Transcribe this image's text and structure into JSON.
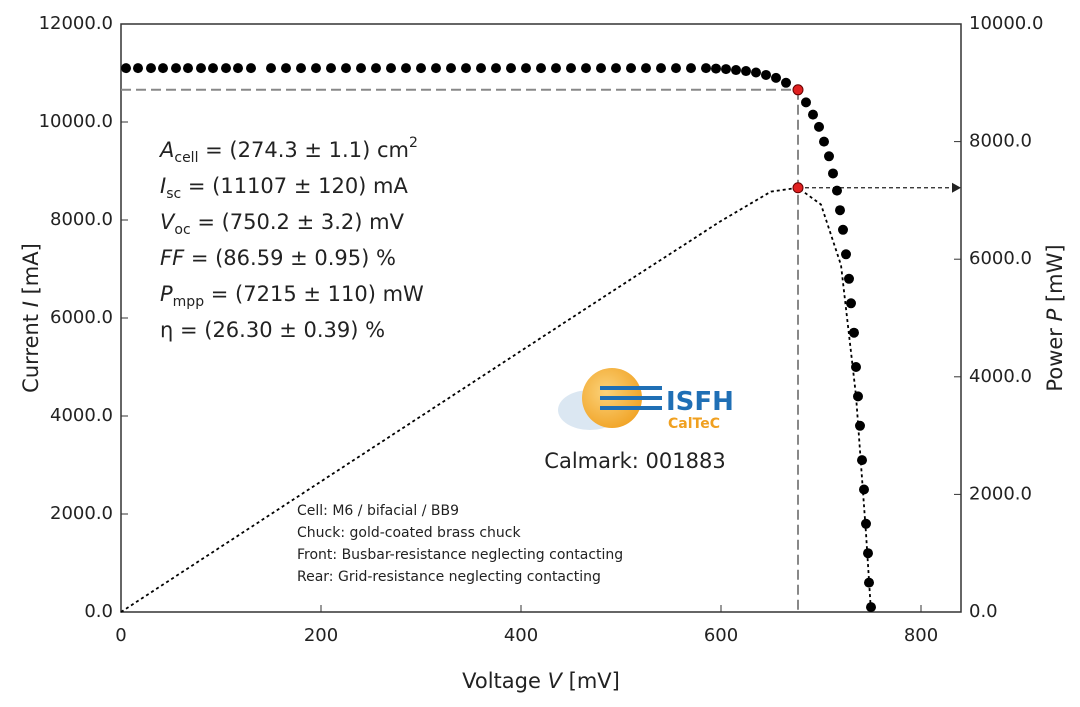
{
  "chart_data": {
    "type": "scatter",
    "xlabel": [
      "Voltage ",
      "V",
      " [mV]"
    ],
    "ylabel": [
      "Current ",
      "I",
      " [mA]"
    ],
    "y2label": [
      "Power ",
      "P",
      " [mW]"
    ],
    "xlim": [
      0,
      840
    ],
    "xticks": [
      0,
      200,
      400,
      600,
      800
    ],
    "ylim": [
      0,
      12000
    ],
    "yticks": [
      {
        "value": 0,
        "label": "0.0"
      },
      {
        "value": 2000,
        "label": "2000.0"
      },
      {
        "value": 4000,
        "label": "4000.0"
      },
      {
        "value": 6000,
        "label": "6000.0"
      },
      {
        "value": 8000,
        "label": "8000.0"
      },
      {
        "value": 10000,
        "label": "10000.0"
      },
      {
        "value": 12000,
        "label": "12000.0"
      }
    ],
    "y2lim": [
      0,
      10000
    ],
    "y2ticks": [
      {
        "value": 0,
        "label": "0.0"
      },
      {
        "value": 2000,
        "label": "2000.0"
      },
      {
        "value": 4000,
        "label": "4000.0"
      },
      {
        "value": 6000,
        "label": "6000.0"
      },
      {
        "value": 8000,
        "label": "8000.0"
      },
      {
        "value": 10000,
        "label": "10000.0"
      }
    ],
    "grid": false,
    "series": [
      {
        "color": "#000000",
        "marker": "circle",
        "x": [
          5,
          17,
          30,
          42,
          55,
          67,
          80,
          92,
          105,
          117,
          130,
          150,
          165,
          180,
          195,
          210,
          225,
          240,
          255,
          270,
          285,
          300,
          315,
          330,
          345,
          360,
          375,
          390,
          405,
          420,
          435,
          450,
          465,
          480,
          495,
          510,
          525,
          540,
          555,
          570,
          585,
          595,
          605,
          615,
          625,
          635,
          645,
          655,
          665,
          677,
          685,
          692,
          698,
          703,
          708,
          712,
          716,
          719,
          722,
          725,
          728,
          730,
          733,
          735,
          737,
          739,
          741,
          743,
          745,
          747,
          748,
          750
        ],
        "values": [
          11100,
          11100,
          11100,
          11100,
          11100,
          11100,
          11100,
          11100,
          11100,
          11100,
          11100,
          11100,
          11100,
          11100,
          11100,
          11100,
          11100,
          11100,
          11100,
          11100,
          11100,
          11100,
          11100,
          11100,
          11100,
          11100,
          11100,
          11100,
          11100,
          11100,
          11100,
          11100,
          11100,
          11100,
          11100,
          11100,
          11100,
          11100,
          11100,
          11100,
          11100,
          11090,
          11080,
          11060,
          11040,
          11010,
          10960,
          10900,
          10800,
          10657,
          10400,
          10150,
          9900,
          9600,
          9300,
          8950,
          8600,
          8200,
          7800,
          7300,
          6800,
          6300,
          5700,
          5000,
          4400,
          3800,
          3100,
          2500,
          1800,
          1200,
          600,
          100
        ]
      },
      {
        "color": "#000000",
        "line_style": "dotted",
        "axis": "y2",
        "x": [
          0,
          100,
          200,
          300,
          400,
          500,
          600,
          650,
          677,
          700,
          720,
          735,
          745,
          750
        ],
        "values": [
          0,
          1110,
          2220,
          3330,
          4440,
          5550,
          6650,
          7150,
          7215,
          6930,
          5900,
          3680,
          1340,
          0
        ]
      }
    ],
    "mpp": {
      "x": 677,
      "y": 10657,
      "y2": 7215,
      "color": "#e02020",
      "guide_color": "#888888"
    },
    "parameters": [
      {
        "symbol": "A",
        "sub": "cell",
        "text": " = (274.3 ± 1.1) cm",
        "sup": "2"
      },
      {
        "symbol": "I",
        "sub": "sc",
        "text": " = (11107 ± 120) mA"
      },
      {
        "symbol": "V",
        "sub": "oc",
        "text": " = (750.2 ± 3.2) mV"
      },
      {
        "symbol": "FF",
        "text": " = (86.59 ± 0.95) %"
      },
      {
        "symbol": "P",
        "sub": "mpp",
        "text": " = (7215 ± 110) mW"
      },
      {
        "text": "η = (26.30 ± 0.39) %"
      }
    ],
    "logo": {
      "name": "ISFH",
      "sub": "CalTeC"
    },
    "calmark": "Calmark: 001883",
    "notes": [
      "Cell: M6 / bifacial / BB9",
      "Chuck: gold-coated brass chuck",
      "Front: Busbar-resistance neglecting contacting",
      "Rear: Grid-resistance neglecting contacting"
    ]
  }
}
